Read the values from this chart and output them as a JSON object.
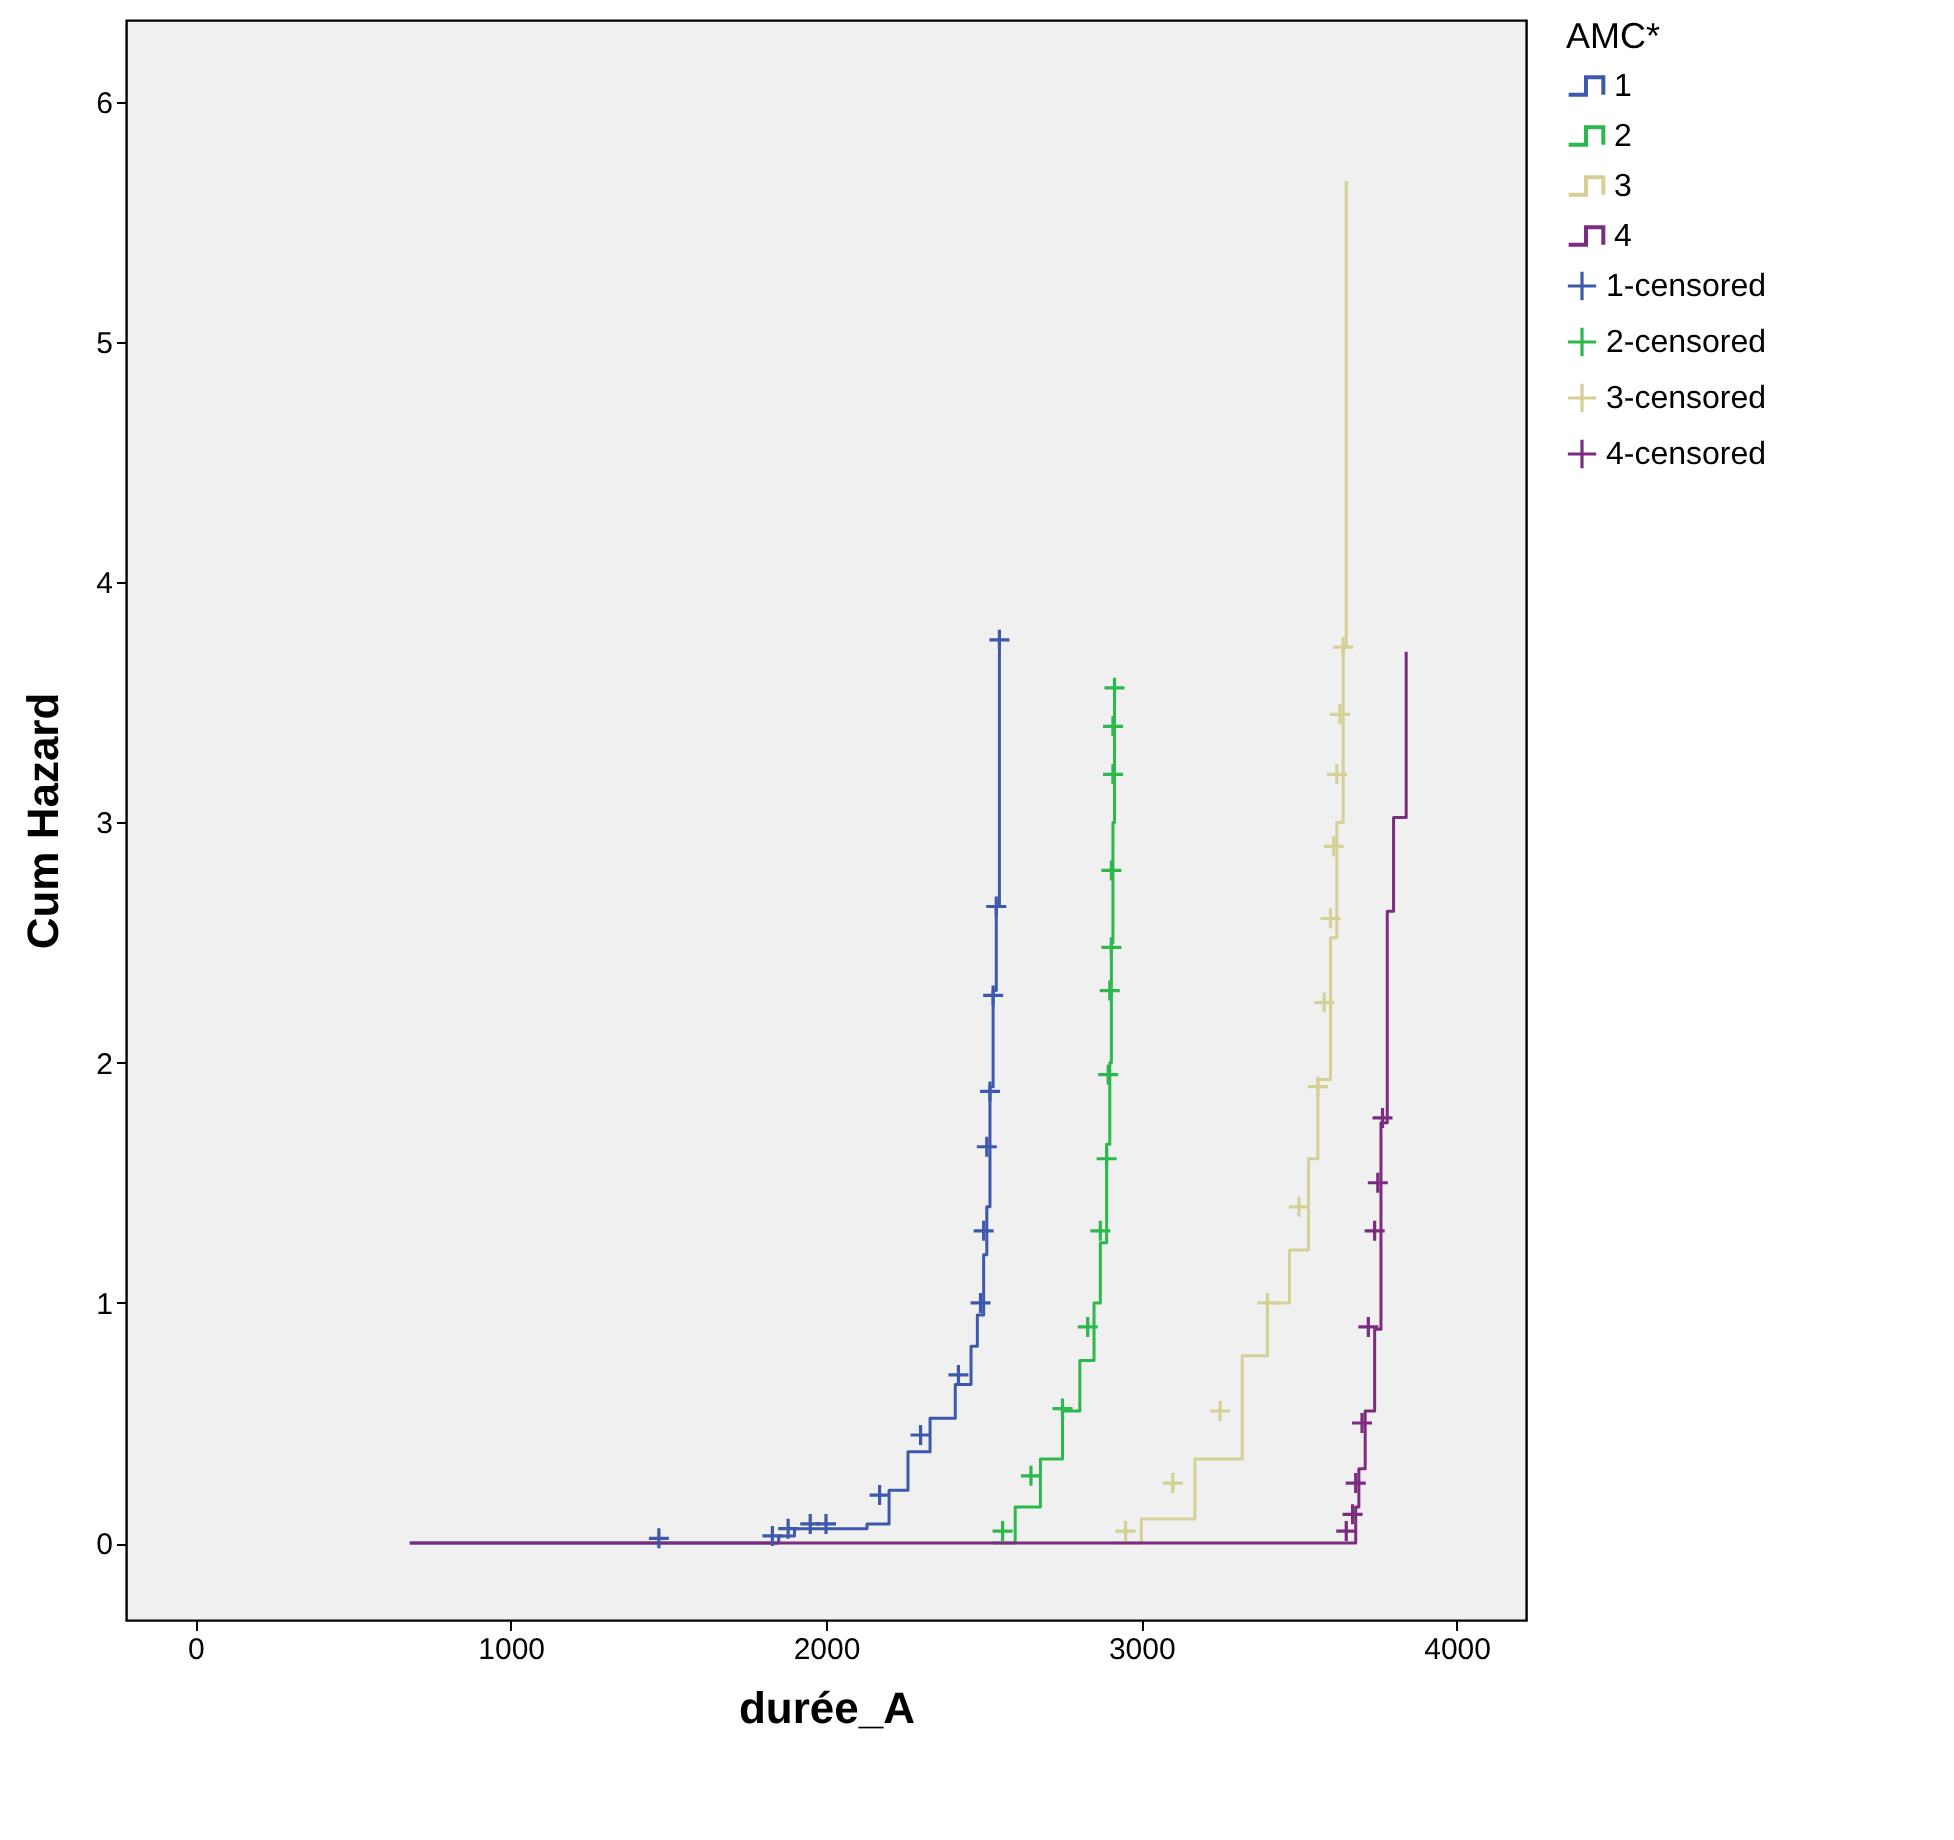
{
  "chart_data": {
    "type": "step",
    "xlabel": "durée_A",
    "ylabel": "Cum Hazard",
    "legend_title": "AMC*",
    "legend": "right",
    "grid": false,
    "line_style": "solid",
    "xlim": [
      -220,
      4220
    ],
    "xticks": [
      0,
      1000,
      2000,
      3000,
      4000
    ],
    "ylim": [
      -0.32,
      6.34
    ],
    "yticks": [
      0,
      1,
      2,
      3,
      4,
      5,
      6
    ],
    "series": [
      {
        "name": "1",
        "color": "#3e58ac",
        "x": [
          680,
          1800,
          1850,
          1900,
          2130,
          2200,
          2260,
          2330,
          2410,
          2460,
          2480,
          2500,
          2510,
          2520,
          2530,
          2540,
          2550
        ],
        "values": [
          0,
          0,
          0.03,
          0.06,
          0.08,
          0.22,
          0.38,
          0.52,
          0.66,
          0.82,
          0.95,
          1.2,
          1.4,
          1.9,
          2.3,
          2.65,
          3.76
        ]
      },
      {
        "name": "2",
        "color": "#2db84d",
        "x": [
          2530,
          2600,
          2680,
          2750,
          2805,
          2850,
          2870,
          2890,
          2900,
          2905,
          2910,
          2915
        ],
        "values": [
          0,
          0.15,
          0.35,
          0.55,
          0.76,
          1.0,
          1.25,
          1.66,
          2.0,
          2.5,
          3.0,
          3.56
        ]
      },
      {
        "name": "3",
        "color": "#d5cf98",
        "x": [
          2910,
          3000,
          3170,
          3320,
          3400,
          3470,
          3530,
          3560,
          3600,
          3620,
          3640,
          3650
        ],
        "values": [
          0,
          0.1,
          0.35,
          0.78,
          1.0,
          1.22,
          1.6,
          1.93,
          2.52,
          3.0,
          3.73,
          5.67
        ]
      },
      {
        "name": "4",
        "color": "#7b2c7f",
        "x": [
          680,
          3660,
          3680,
          3690,
          3710,
          3740,
          3760,
          3780,
          3800,
          3840
        ],
        "values": [
          0,
          0,
          0.15,
          0.31,
          0.55,
          0.89,
          1.75,
          2.63,
          3.02,
          3.71
        ]
      },
      {
        "name": "1-censored",
        "type": "scatter",
        "marker": "cross",
        "color": "#3e58ac",
        "x": [
          1470,
          1830,
          1880,
          1950,
          2000,
          2170,
          2300,
          2420,
          2490,
          2500,
          2510,
          2520,
          2530,
          2540,
          2550
        ],
        "values": [
          0.02,
          0.03,
          0.06,
          0.08,
          0.08,
          0.2,
          0.45,
          0.7,
          1.0,
          1.3,
          1.65,
          1.88,
          2.28,
          2.65,
          3.76
        ]
      },
      {
        "name": "2-censored",
        "type": "scatter",
        "marker": "cross",
        "color": "#2db84d",
        "x": [
          2560,
          2650,
          2750,
          2830,
          2870,
          2890,
          2895,
          2900,
          2905,
          2905,
          2910,
          2910,
          2915
        ],
        "values": [
          0.05,
          0.28,
          0.56,
          0.9,
          1.3,
          1.6,
          1.95,
          2.3,
          2.48,
          2.8,
          3.2,
          3.4,
          3.56
        ]
      },
      {
        "name": "3-censored",
        "type": "scatter",
        "marker": "cross",
        "color": "#d5cf98",
        "x": [
          2950,
          3100,
          3250,
          3400,
          3500,
          3560,
          3580,
          3600,
          3610,
          3620,
          3630,
          3640
        ],
        "values": [
          0.05,
          0.25,
          0.55,
          1.0,
          1.4,
          1.9,
          2.25,
          2.6,
          2.9,
          3.2,
          3.45,
          3.73
        ]
      },
      {
        "name": "4-censored",
        "type": "scatter",
        "marker": "cross",
        "color": "#7b2c7f",
        "x": [
          3650,
          3670,
          3680,
          3700,
          3720,
          3740,
          3750,
          3765
        ],
        "values": [
          0.05,
          0.12,
          0.25,
          0.5,
          0.9,
          1.3,
          1.5,
          1.77
        ]
      }
    ]
  }
}
